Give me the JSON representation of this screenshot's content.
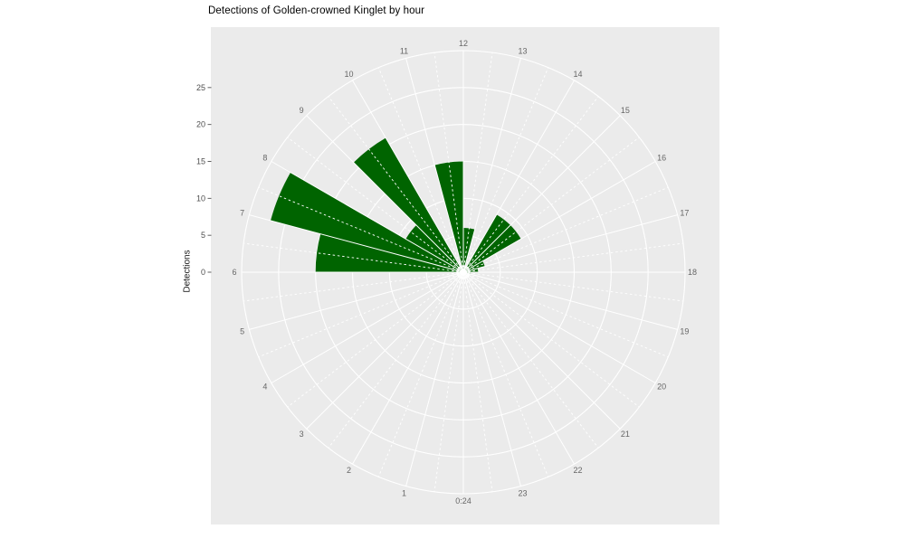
{
  "page": {
    "title": "Detections of Golden-crowned Kinglet by hour"
  },
  "chart_data": {
    "type": "polar_bar",
    "title": "Detections of Golden-crowned Kinglet by hour",
    "ylabel": "Detections",
    "theta_unit": "hour",
    "zero_position": "bottom",
    "direction": "clockwise",
    "hour_labels": [
      "0:24",
      "1",
      "2",
      "3",
      "4",
      "5",
      "6",
      "7",
      "8",
      "9",
      "10",
      "11",
      "12",
      "13",
      "14",
      "15",
      "16",
      "17",
      "18",
      "19",
      "20",
      "21",
      "22",
      "23"
    ],
    "values": [
      0,
      0,
      0,
      0,
      0,
      0,
      20,
      27,
      9,
      21,
      0,
      15,
      6,
      0,
      9,
      9,
      3,
      2,
      1,
      0,
      0,
      0,
      0,
      0
    ],
    "r_ticks": [
      0,
      5,
      10,
      15,
      20,
      25
    ],
    "r_max": 30,
    "grid": "on",
    "minor_spokes": "half-hour dashed",
    "colors": {
      "bar": "#006400",
      "panel_bg": "#ebebeb",
      "grid": "#ffffff",
      "axis_text": "#4d4d4d",
      "hour_text": "#666666",
      "title_text": "#000000",
      "tick_mark": "#4d4d4d"
    }
  }
}
